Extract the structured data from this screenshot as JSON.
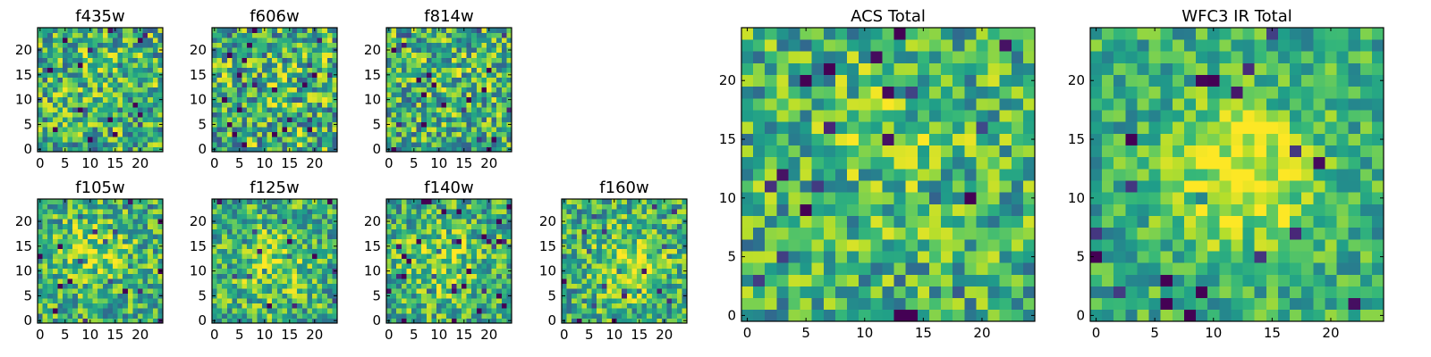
{
  "chart_data": [
    {
      "type": "heatmap",
      "title": "f435w",
      "x_ticks": [
        0,
        5,
        10,
        15,
        20
      ],
      "y_ticks": [
        0,
        5,
        10,
        15,
        20
      ],
      "xlim": [
        -0.5,
        24.5
      ],
      "ylim": [
        -0.5,
        24.5
      ],
      "grid_size": 25,
      "colormap": "viridis",
      "seed": 11,
      "features": {
        "noise": 0.35,
        "blob": 0.05,
        "blob_center": [
          13,
          15
        ],
        "blob_sigma": 6
      }
    },
    {
      "type": "heatmap",
      "title": "f606w",
      "x_ticks": [
        0,
        5,
        10,
        15,
        20
      ],
      "y_ticks": [
        0,
        5,
        10,
        15,
        20
      ],
      "xlim": [
        -0.5,
        24.5
      ],
      "ylim": [
        -0.5,
        24.5
      ],
      "grid_size": 25,
      "colormap": "viridis",
      "seed": 23,
      "features": {
        "noise": 0.38,
        "blob": 0.04,
        "blob_center": [
          12,
          12
        ],
        "blob_sigma": 6
      }
    },
    {
      "type": "heatmap",
      "title": "f814w",
      "x_ticks": [
        0,
        5,
        10,
        15,
        20
      ],
      "y_ticks": [
        0,
        5,
        10,
        15,
        20
      ],
      "xlim": [
        -0.5,
        24.5
      ],
      "ylim": [
        -0.5,
        24.5
      ],
      "grid_size": 25,
      "colormap": "viridis",
      "seed": 37,
      "features": {
        "noise": 0.35,
        "blob": 0.06,
        "blob_center": [
          13,
          15
        ],
        "blob_sigma": 5
      }
    },
    {
      "type": "heatmap",
      "title": "f105w",
      "x_ticks": [
        0,
        5,
        10,
        15,
        20
      ],
      "y_ticks": [
        0,
        5,
        10,
        15,
        20
      ],
      "xlim": [
        -0.5,
        24.5
      ],
      "ylim": [
        -0.5,
        24.5
      ],
      "grid_size": 25,
      "colormap": "viridis",
      "seed": 41,
      "features": {
        "noise": 0.3,
        "blob": 0.2,
        "blob_center": [
          11,
          14
        ],
        "blob_sigma": 5
      }
    },
    {
      "type": "heatmap",
      "title": "f125w",
      "x_ticks": [
        0,
        5,
        10,
        15,
        20
      ],
      "y_ticks": [
        0,
        5,
        10,
        15,
        20
      ],
      "xlim": [
        -0.5,
        24.5
      ],
      "ylim": [
        -0.5,
        24.5
      ],
      "grid_size": 25,
      "colormap": "viridis",
      "seed": 53,
      "features": {
        "noise": 0.3,
        "blob": 0.22,
        "blob_center": [
          12,
          11
        ],
        "blob_sigma": 5
      }
    },
    {
      "type": "heatmap",
      "title": "f140w",
      "x_ticks": [
        0,
        5,
        10,
        15,
        20
      ],
      "y_ticks": [
        0,
        5,
        10,
        15,
        20
      ],
      "xlim": [
        -0.5,
        24.5
      ],
      "ylim": [
        -0.5,
        24.5
      ],
      "grid_size": 25,
      "colormap": "viridis",
      "seed": 67,
      "features": {
        "noise": 0.3,
        "blob": 0.22,
        "blob_center": [
          10,
          12
        ],
        "blob_sigma": 5
      }
    },
    {
      "type": "heatmap",
      "title": "f160w",
      "x_ticks": [
        0,
        5,
        10,
        15,
        20
      ],
      "y_ticks": [
        0,
        5,
        10,
        15,
        20
      ],
      "xlim": [
        -0.5,
        24.5
      ],
      "ylim": [
        -0.5,
        24.5
      ],
      "grid_size": 25,
      "colormap": "viridis",
      "seed": 79,
      "features": {
        "noise": 0.3,
        "blob": 0.25,
        "blob_center": [
          13,
          11
        ],
        "blob_sigma": 5
      }
    },
    {
      "type": "heatmap",
      "title": "ACS Total",
      "x_ticks": [
        0,
        5,
        10,
        15,
        20
      ],
      "y_ticks": [
        0,
        5,
        10,
        15,
        20
      ],
      "xlim": [
        -0.5,
        24.5
      ],
      "ylim": [
        -0.5,
        24.5
      ],
      "grid_size": 25,
      "colormap": "viridis",
      "seed": 97,
      "features": {
        "noise": 0.3,
        "blob": 0.1,
        "blob_center": [
          13,
          14
        ],
        "blob_sigma": 6
      }
    },
    {
      "type": "heatmap",
      "title": "WFC3 IR Total",
      "x_ticks": [
        0,
        5,
        10,
        15,
        20
      ],
      "y_ticks": [
        0,
        5,
        10,
        15,
        20
      ],
      "xlim": [
        -0.5,
        24.5
      ],
      "ylim": [
        -0.5,
        24.5
      ],
      "grid_size": 25,
      "colormap": "viridis",
      "seed": 113,
      "features": {
        "noise": 0.22,
        "blob": 0.38,
        "blob_center": [
          12.5,
          12
        ],
        "blob_sigma": 4.2
      }
    }
  ]
}
